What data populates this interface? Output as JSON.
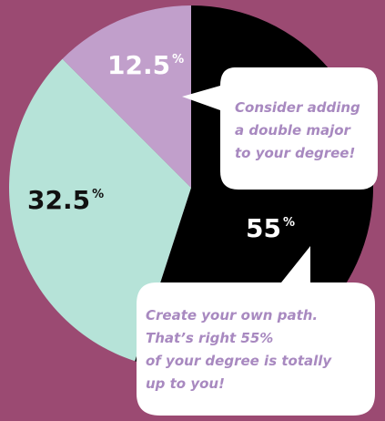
{
  "chart_data": {
    "type": "pie",
    "slices": [
      {
        "label": "55",
        "value": 55,
        "color": "#000000"
      },
      {
        "label": "32.5",
        "value": 32.5,
        "color": "#b6e3d8"
      },
      {
        "label": "12.5",
        "value": 12.5,
        "color": "#c19fcb"
      }
    ],
    "percent_symbol": "%",
    "start_angle_deg": 0,
    "direction": "clockwise"
  },
  "colors": {
    "background": "#9b4a72",
    "bubble_fill": "#ffffff",
    "bubble_text": "#a889c0"
  },
  "callouts": {
    "top": {
      "lines": [
        "Consider adding",
        "a double major",
        "to your degree!"
      ]
    },
    "bottom": {
      "lines": [
        "Create your own path.",
        "That’s right 55%",
        "of your degree is totally",
        "up to you!"
      ]
    }
  }
}
